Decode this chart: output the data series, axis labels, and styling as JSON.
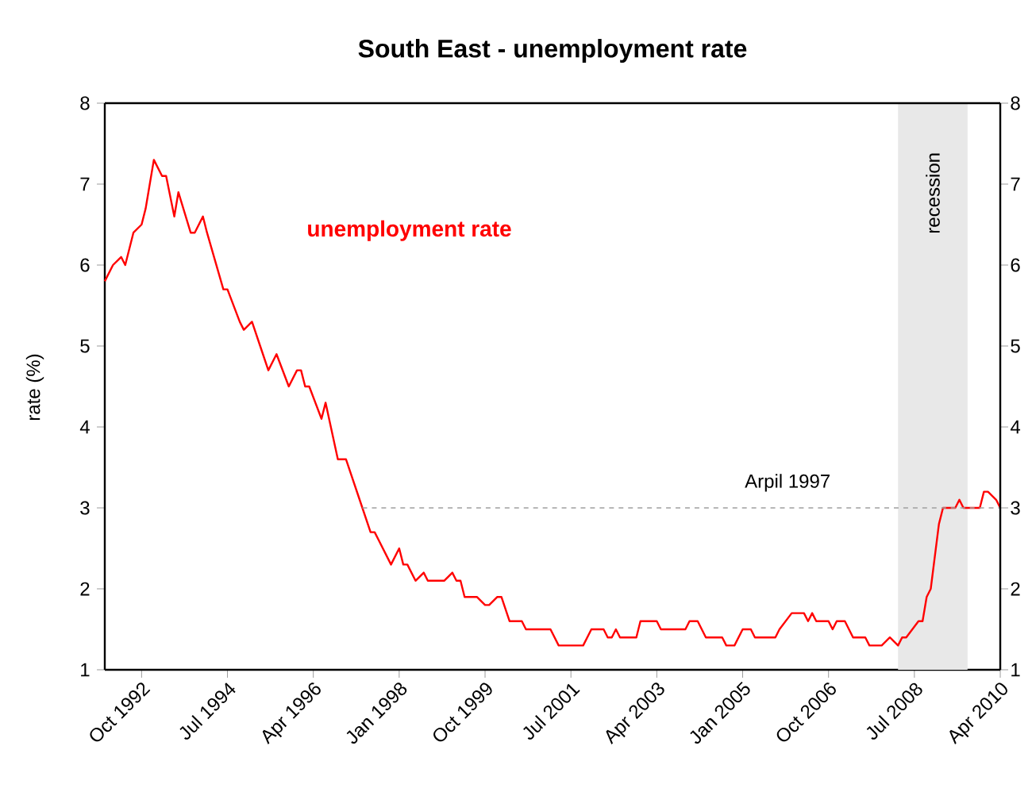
{
  "chart_data": {
    "type": "line",
    "title": "South East - unemployment rate",
    "ylabel": "rate (%)",
    "xlim": [
      "1992-01",
      "2010-04"
    ],
    "xticks": [
      {
        "value": "1992-10",
        "label": "Oct 1992"
      },
      {
        "value": "1994-07",
        "label": "Jul 1994"
      },
      {
        "value": "1996-04",
        "label": "Apr 1996"
      },
      {
        "value": "1998-01",
        "label": "Jan 1998"
      },
      {
        "value": "1999-10",
        "label": "Oct 1999"
      },
      {
        "value": "2001-07",
        "label": "Jul 2001"
      },
      {
        "value": "2003-04",
        "label": "Apr 2003"
      },
      {
        "value": "2005-01",
        "label": "Jan 2005"
      },
      {
        "value": "2006-10",
        "label": "Oct 2006"
      },
      {
        "value": "2008-07",
        "label": "Jul 2008"
      },
      {
        "value": "2010-04",
        "label": "Apr 2010"
      }
    ],
    "ylim": [
      1,
      8
    ],
    "yticks": [
      1,
      2,
      3,
      4,
      5,
      6,
      7,
      8
    ],
    "y2lim": [
      1,
      8
    ],
    "y2ticks": [
      1,
      2,
      3,
      4,
      5,
      6,
      7,
      8
    ],
    "series": [
      {
        "name": "unemployment rate",
        "color": "#ff0000",
        "x": [
          "1992-01",
          "1992-03",
          "1992-05",
          "1992-06",
          "1992-08",
          "1992-10",
          "1992-11",
          "1993-01",
          "1993-03",
          "1993-04",
          "1993-06",
          "1993-07",
          "1993-10",
          "1993-11",
          "1994-01",
          "1994-02",
          "1994-06",
          "1994-07",
          "1994-10",
          "1994-11",
          "1995-01",
          "1995-03",
          "1995-05",
          "1995-07",
          "1995-10",
          "1995-12",
          "1996-01",
          "1996-02",
          "1996-03",
          "1996-06",
          "1996-07",
          "1996-10",
          "1996-12",
          "1997-04",
          "1997-06",
          "1997-07",
          "1997-08",
          "1997-11",
          "1998-01",
          "1998-02",
          "1998-03",
          "1998-05",
          "1998-07",
          "1998-08",
          "1998-12",
          "1999-02",
          "1999-03",
          "1999-04",
          "1999-05",
          "1999-08",
          "1999-10",
          "1999-11",
          "2000-01",
          "2000-02",
          "2000-04",
          "2000-07",
          "2000-08",
          "2001-02",
          "2001-04",
          "2001-10",
          "2001-12",
          "2002-03",
          "2002-04",
          "2002-05",
          "2002-06",
          "2002-07",
          "2002-11",
          "2002-12",
          "2003-04",
          "2003-05",
          "2003-11",
          "2003-12",
          "2004-02",
          "2004-04",
          "2004-08",
          "2004-09",
          "2004-11",
          "2005-01",
          "2005-03",
          "2005-04",
          "2005-09",
          "2005-10",
          "2006-01",
          "2006-04",
          "2006-05",
          "2006-06",
          "2006-07",
          "2006-10",
          "2006-11",
          "2006-12",
          "2007-02",
          "2007-03",
          "2007-04",
          "2007-07",
          "2007-08",
          "2007-11",
          "2008-01",
          "2008-03",
          "2008-04",
          "2008-05",
          "2008-08",
          "2008-09",
          "2008-10",
          "2008-11",
          "2008-12",
          "2009-01",
          "2009-02",
          "2009-05",
          "2009-06",
          "2009-07",
          "2009-11",
          "2009-12",
          "2010-01",
          "2010-03",
          "2010-04"
        ],
        "values": [
          5.8,
          6.0,
          6.1,
          6.0,
          6.4,
          6.5,
          6.7,
          7.3,
          7.1,
          7.1,
          6.6,
          6.9,
          6.4,
          6.4,
          6.6,
          6.4,
          5.7,
          5.7,
          5.3,
          5.2,
          5.3,
          5.0,
          4.7,
          4.9,
          4.5,
          4.7,
          4.7,
          4.5,
          4.5,
          4.1,
          4.3,
          3.6,
          3.6,
          3.0,
          2.7,
          2.7,
          2.6,
          2.3,
          2.5,
          2.3,
          2.3,
          2.1,
          2.2,
          2.1,
          2.1,
          2.2,
          2.1,
          2.1,
          1.9,
          1.9,
          1.8,
          1.8,
          1.9,
          1.9,
          1.6,
          1.6,
          1.5,
          1.5,
          1.3,
          1.3,
          1.5,
          1.5,
          1.4,
          1.4,
          1.5,
          1.4,
          1.4,
          1.6,
          1.6,
          1.5,
          1.5,
          1.6,
          1.6,
          1.4,
          1.4,
          1.3,
          1.3,
          1.5,
          1.5,
          1.4,
          1.4,
          1.5,
          1.7,
          1.7,
          1.6,
          1.7,
          1.6,
          1.6,
          1.5,
          1.6,
          1.6,
          1.5,
          1.4,
          1.4,
          1.3,
          1.3,
          1.4,
          1.3,
          1.4,
          1.4,
          1.6,
          1.6,
          1.9,
          2.0,
          2.4,
          2.8,
          3.0,
          3.0,
          3.1,
          3.0,
          3.0,
          3.2,
          3.2,
          3.1,
          3.0
        ]
      },
      {
        "type": "line",
        "color": "#a0a0a0",
        "line_style": "dashed",
        "x": [
          "1997-04",
          "2010-04"
        ],
        "values": [
          3,
          3
        ]
      }
    ],
    "bands": [
      {
        "axis": "x",
        "from": "2008-03",
        "to": "2009-08",
        "label": "recession",
        "color": "#e8e8e8"
      }
    ],
    "annotations": [
      {
        "text": "Arpil 1997",
        "x": "2005-12",
        "y": 3
      }
    ]
  }
}
